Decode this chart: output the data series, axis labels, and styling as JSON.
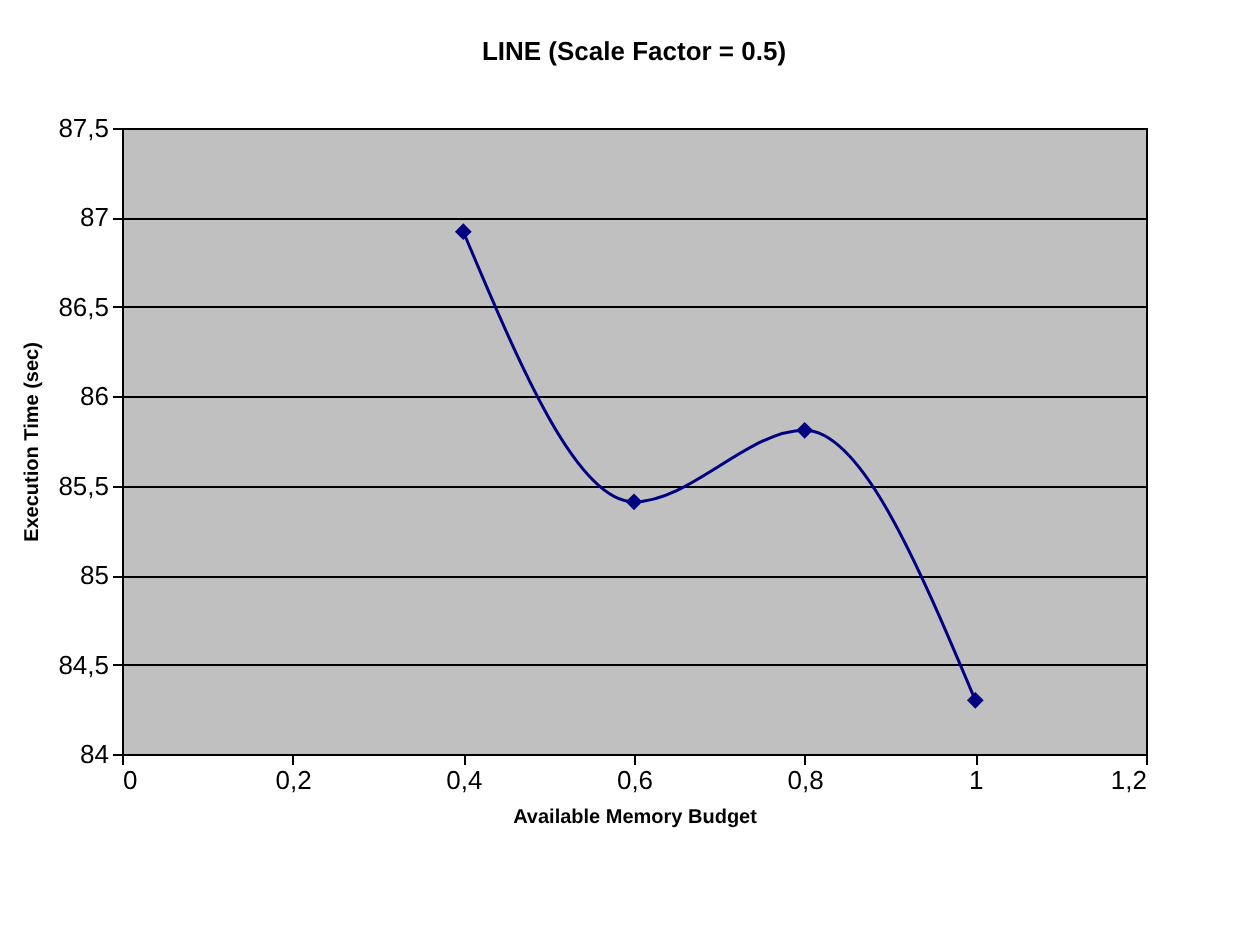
{
  "chart_data": {
    "type": "line",
    "title": "LINE (Scale Factor = 0.5)",
    "xlabel": "Available Memory Budget",
    "ylabel": "Execution Time (sec)",
    "x": [
      0.4,
      0.6,
      0.8,
      1.0
    ],
    "series": [
      {
        "color": "#000080",
        "values": [
          86.92,
          85.41,
          85.81,
          84.3
        ]
      }
    ],
    "xlim": [
      0,
      1.2
    ],
    "xticks": [
      0,
      {
        "value": 0.2,
        "label": "0,2"
      },
      {
        "value": 0.4,
        "label": "0,4"
      },
      {
        "value": 0.6,
        "label": "0,6"
      },
      {
        "value": 0.8,
        "label": "0,8"
      },
      1,
      {
        "value": 1.2,
        "label": "1,2"
      }
    ],
    "ylim": [
      84,
      87.5
    ],
    "yticks": [
      84,
      {
        "value": 84.5,
        "label": "84,5"
      },
      85,
      {
        "value": 85.5,
        "label": "85,5"
      },
      86,
      {
        "value": 86.5,
        "label": "86,5"
      },
      87,
      {
        "value": 87.5,
        "label": "87,5"
      }
    ],
    "grid": "y",
    "marker": "diamond",
    "line_style": "solid"
  }
}
